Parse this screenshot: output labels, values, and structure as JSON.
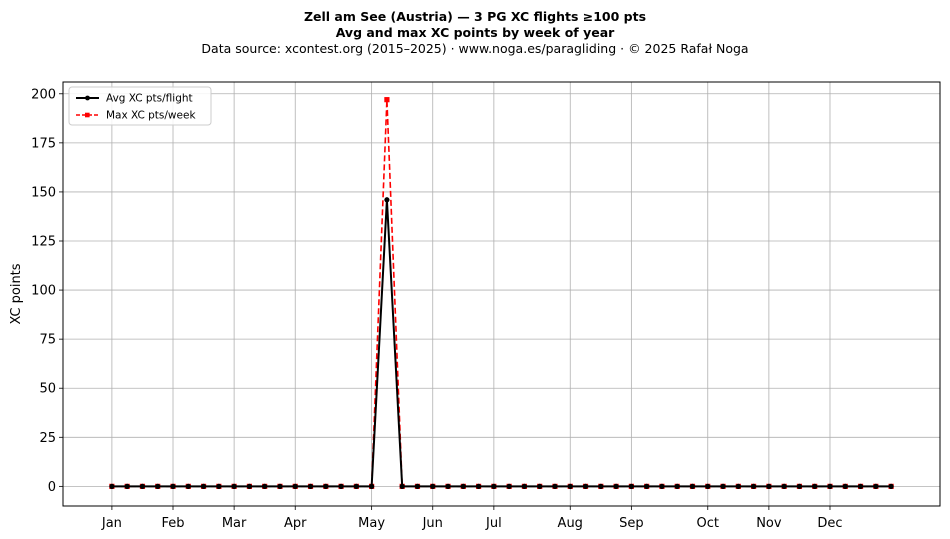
{
  "chart_data": {
    "type": "line",
    "title": "Zell am See (Austria)  —  3 PG XC flights ≥100 pts",
    "subtitle": "Avg and max XC points by week of year",
    "source": "Data source: xcontest.org (2015–2025)  ·  www.noga.es/paragliding  ·  © 2025 Rafał Noga",
    "xlabel": "",
    "ylabel": "XC points",
    "x_weeks": [
      1,
      2,
      3,
      4,
      5,
      6,
      7,
      8,
      9,
      10,
      11,
      12,
      13,
      14,
      15,
      16,
      17,
      18,
      19,
      20,
      21,
      22,
      23,
      24,
      25,
      26,
      27,
      28,
      29,
      30,
      31,
      32,
      33,
      34,
      35,
      36,
      37,
      38,
      39,
      40,
      41,
      42,
      43,
      44,
      45,
      46,
      47,
      48,
      49,
      50,
      51,
      52
    ],
    "x_ticks": [
      {
        "week": 1,
        "label": "Jan"
      },
      {
        "week": 5,
        "label": "Feb"
      },
      {
        "week": 9,
        "label": "Mar"
      },
      {
        "week": 13,
        "label": "Apr"
      },
      {
        "week": 18,
        "label": "May"
      },
      {
        "week": 22,
        "label": "Jun"
      },
      {
        "week": 26,
        "label": "Jul"
      },
      {
        "week": 31,
        "label": "Aug"
      },
      {
        "week": 35,
        "label": "Sep"
      },
      {
        "week": 40,
        "label": "Oct"
      },
      {
        "week": 44,
        "label": "Nov"
      },
      {
        "week": 48,
        "label": "Dec"
      }
    ],
    "y_ticks": [
      0,
      25,
      50,
      75,
      100,
      125,
      150,
      175,
      200
    ],
    "xlim": [
      -2.2,
      55.2
    ],
    "ylim": [
      -10,
      206
    ],
    "grid": true,
    "legend_position": "top-left",
    "series": [
      {
        "name": "Avg XC pts/flight",
        "color": "#000000",
        "style": "solid",
        "marker": "circle",
        "values": [
          0,
          0,
          0,
          0,
          0,
          0,
          0,
          0,
          0,
          0,
          0,
          0,
          0,
          0,
          0,
          0,
          0,
          0,
          146,
          0,
          0,
          0,
          0,
          0,
          0,
          0,
          0,
          0,
          0,
          0,
          0,
          0,
          0,
          0,
          0,
          0,
          0,
          0,
          0,
          0,
          0,
          0,
          0,
          0,
          0,
          0,
          0,
          0,
          0,
          0,
          0,
          0
        ]
      },
      {
        "name": "Max XC pts/week",
        "color": "#ff0000",
        "style": "dashed",
        "marker": "square",
        "values": [
          0,
          0,
          0,
          0,
          0,
          0,
          0,
          0,
          0,
          0,
          0,
          0,
          0,
          0,
          0,
          0,
          0,
          0,
          197,
          0,
          0,
          0,
          0,
          0,
          0,
          0,
          0,
          0,
          0,
          0,
          0,
          0,
          0,
          0,
          0,
          0,
          0,
          0,
          0,
          0,
          0,
          0,
          0,
          0,
          0,
          0,
          0,
          0,
          0,
          0,
          0,
          0
        ]
      }
    ]
  }
}
